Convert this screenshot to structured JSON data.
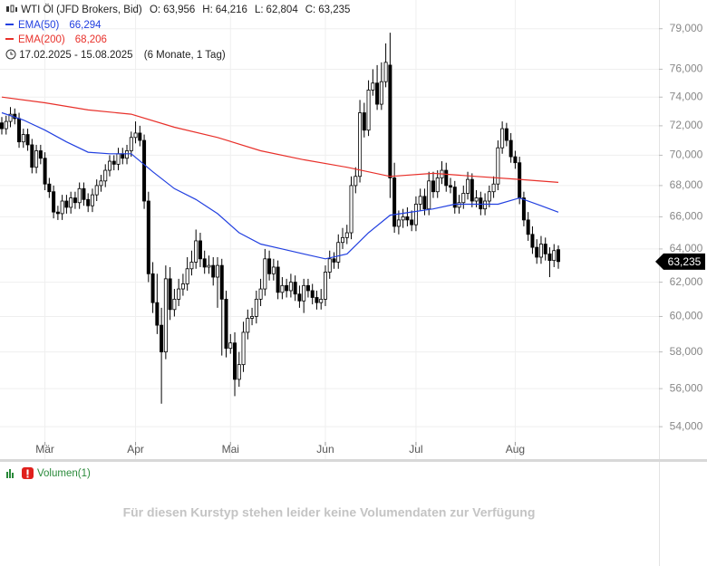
{
  "chart_data": {
    "type": "candlestick",
    "title": "WTI Öl (JFD Brokers, Bid)",
    "readout": [
      {
        "name": "O:",
        "text": "63,956"
      },
      {
        "name": "H:",
        "text": "64,216"
      },
      {
        "name": "L:",
        "text": "62,804"
      },
      {
        "name": "C:",
        "text": "63,235"
      }
    ],
    "period": {
      "range": "17.02.2025 - 15.08.2025",
      "span": "(6 Monate, 1 Tag)"
    },
    "log_scale": true,
    "grid": true,
    "ylim": [
      52.35,
      81.2
    ],
    "yticks": [
      {
        "value": 54,
        "label": "54,000"
      },
      {
        "value": 56,
        "label": "56,000"
      },
      {
        "value": 58,
        "label": "58,000"
      },
      {
        "value": 60,
        "label": "60,000"
      },
      {
        "value": 62,
        "label": "62,000"
      },
      {
        "value": 64,
        "label": "64,000"
      },
      {
        "value": 66,
        "label": "66,000"
      },
      {
        "value": 68,
        "label": "68,000"
      },
      {
        "value": 70,
        "label": "70,000"
      },
      {
        "value": 72,
        "label": "72,000"
      },
      {
        "value": 74,
        "label": "74,000"
      },
      {
        "value": 76,
        "label": "76,000"
      },
      {
        "value": 79,
        "label": "79,000"
      }
    ],
    "categories": [
      null,
      null,
      null,
      null,
      null,
      null,
      null,
      null,
      null,
      null,
      "Mär",
      null,
      null,
      null,
      null,
      null,
      null,
      null,
      null,
      null,
      null,
      null,
      null,
      null,
      null,
      null,
      null,
      null,
      null,
      null,
      null,
      "Apr",
      null,
      null,
      null,
      null,
      null,
      null,
      null,
      null,
      null,
      null,
      null,
      null,
      null,
      null,
      null,
      null,
      null,
      null,
      null,
      null,
      null,
      "Mai",
      null,
      null,
      null,
      null,
      null,
      null,
      null,
      null,
      null,
      null,
      null,
      null,
      null,
      null,
      null,
      null,
      null,
      null,
      null,
      null,
      null,
      "Jun",
      null,
      null,
      null,
      null,
      null,
      null,
      null,
      null,
      null,
      null,
      null,
      null,
      null,
      null,
      null,
      null,
      null,
      null,
      null,
      null,
      "Jul",
      null,
      null,
      null,
      null,
      null,
      null,
      null,
      null,
      null,
      null,
      null,
      null,
      null,
      null,
      null,
      null,
      null,
      null,
      null,
      null,
      null,
      null,
      "Aug",
      null,
      null,
      null,
      null,
      null,
      null,
      null,
      null,
      null,
      null
    ],
    "ohlc": {
      "up_color": "#ffffff",
      "down_color": "#000000",
      "open": [
        72.2,
        71.8,
        72.3,
        72.8,
        72.5,
        70.9,
        71.4,
        70.7,
        69.2,
        70.3,
        69.8,
        68.1,
        67.6,
        66.3,
        66.2,
        67.0,
        66.6,
        67.2,
        66.9,
        67.8,
        67.1,
        66.7,
        67.4,
        68.0,
        68.3,
        69.0,
        69.6,
        69.4,
        70.1,
        69.8,
        70.3,
        71.2,
        71.5,
        71.0,
        67.0,
        62.5,
        60.8,
        59.5,
        58.0,
        62.2,
        60.4,
        61.0,
        61.6,
        61.9,
        62.8,
        63.2,
        64.5,
        63.4,
        62.9,
        63.0,
        62.3,
        63.0,
        61.0,
        58.2,
        58.5,
        56.5,
        57.3,
        59.1,
        59.9,
        60.0,
        61.0,
        61.6,
        63.4,
        62.5,
        62.9,
        61.4,
        61.8,
        61.5,
        62.0,
        61.3,
        60.9,
        61.8,
        61.5,
        61.1,
        60.8,
        61.0,
        62.6,
        63.4,
        63.2,
        64.4,
        64.7,
        65.0,
        68.0,
        68.6,
        72.9,
        71.7,
        74.5,
        75.0,
        73.5,
        75.1,
        76.3,
        68.5,
        65.4,
        65.8,
        66.0,
        65.8,
        65.5,
        66.8,
        67.3,
        66.5,
        68.3,
        67.6,
        68.5,
        69.0,
        68.0,
        67.9,
        66.6,
        66.9,
        67.5,
        68.4,
        67.0,
        67.2,
        66.5,
        67.0,
        67.6,
        68.1,
        70.5,
        71.8,
        71.0,
        69.9,
        69.5,
        67.2,
        65.8,
        64.9,
        64.1,
        63.5,
        64.3,
        63.7,
        63.3,
        63.956
      ],
      "high": [
        72.6,
        72.7,
        73.3,
        73.2,
        72.9,
        71.8,
        71.8,
        71.1,
        70.7,
        70.7,
        70.2,
        68.5,
        68.0,
        66.7,
        67.4,
        67.4,
        67.6,
        67.6,
        68.2,
        68.2,
        67.5,
        67.8,
        68.4,
        68.7,
        69.4,
        70.0,
        70.0,
        70.5,
        70.5,
        70.7,
        71.6,
        72.3,
        72.0,
        71.4,
        67.6,
        63.2,
        62.5,
        60.5,
        63.0,
        62.9,
        61.6,
        62.2,
        62.5,
        63.5,
        63.9,
        65.2,
        65.0,
        63.9,
        63.6,
        63.5,
        63.5,
        63.4,
        61.5,
        59.0,
        59.1,
        58.0,
        59.7,
        60.4,
        60.5,
        61.5,
        62.2,
        64.0,
        63.9,
        63.4,
        63.3,
        62.3,
        62.2,
        62.5,
        62.4,
        61.8,
        62.2,
        62.2,
        61.9,
        61.5,
        61.6,
        63.0,
        63.9,
        63.8,
        64.9,
        65.3,
        65.5,
        68.6,
        69.2,
        73.8,
        73.6,
        75.2,
        76.0,
        76.3,
        76.5,
        77.9,
        78.7,
        69.5,
        66.4,
        66.5,
        66.6,
        66.4,
        67.3,
        67.8,
        67.8,
        68.9,
        68.9,
        69.0,
        69.6,
        69.5,
        68.5,
        68.3,
        67.4,
        68.0,
        68.9,
        68.8,
        67.7,
        67.6,
        67.5,
        68.0,
        68.6,
        71.0,
        72.3,
        72.2,
        71.5,
        70.3,
        69.9,
        67.6,
        66.3,
        65.4,
        64.6,
        64.8,
        64.7,
        64.1,
        64.3,
        64.216
      ],
      "low": [
        71.4,
        71.4,
        71.9,
        72.1,
        70.5,
        70.5,
        70.3,
        68.8,
        68.8,
        69.4,
        67.7,
        67.2,
        65.9,
        65.8,
        65.8,
        66.2,
        66.2,
        66.5,
        66.5,
        66.7,
        66.3,
        66.3,
        67.0,
        67.6,
        67.9,
        68.6,
        69.0,
        69.0,
        69.4,
        69.4,
        69.9,
        70.8,
        70.6,
        66.5,
        62.0,
        60.2,
        59.0,
        55.2,
        57.6,
        59.8,
        60.0,
        60.6,
        61.2,
        61.5,
        62.4,
        62.8,
        62.9,
        62.5,
        62.5,
        61.8,
        60.5,
        57.8,
        57.7,
        57.9,
        55.6,
        56.1,
        56.9,
        58.7,
        59.5,
        59.6,
        60.6,
        61.2,
        62.1,
        62.1,
        61.0,
        61.0,
        61.1,
        61.1,
        60.9,
        60.5,
        60.2,
        61.1,
        60.7,
        60.4,
        60.4,
        60.6,
        62.2,
        62.8,
        62.8,
        64.0,
        64.3,
        64.6,
        67.5,
        68.2,
        71.2,
        71.3,
        74.1,
        73.1,
        73.1,
        74.7,
        67.2,
        65.0,
        64.9,
        65.3,
        65.4,
        65.1,
        65.1,
        66.4,
        66.1,
        66.1,
        67.2,
        67.2,
        68.1,
        67.6,
        67.5,
        66.2,
        66.2,
        66.5,
        67.1,
        66.6,
        66.6,
        66.1,
        66.1,
        66.6,
        67.2,
        67.7,
        70.1,
        70.6,
        69.5,
        69.1,
        66.8,
        65.4,
        64.5,
        63.7,
        63.1,
        63.1,
        63.3,
        62.3,
        62.9,
        62.804
      ],
      "close": [
        71.8,
        72.3,
        72.8,
        72.5,
        70.9,
        71.4,
        70.7,
        69.2,
        70.3,
        69.8,
        68.1,
        67.6,
        66.3,
        66.2,
        67.0,
        66.6,
        67.2,
        66.9,
        67.8,
        67.1,
        66.7,
        67.4,
        68.0,
        68.3,
        69.0,
        69.6,
        69.4,
        70.1,
        69.8,
        70.3,
        71.2,
        71.5,
        71.0,
        67.0,
        62.5,
        60.8,
        59.5,
        58.0,
        62.2,
        60.4,
        61.0,
        61.6,
        61.9,
        62.8,
        63.2,
        64.5,
        63.4,
        62.9,
        63.0,
        62.3,
        63.0,
        61.0,
        58.2,
        58.5,
        56.5,
        57.3,
        59.1,
        59.9,
        60.0,
        61.0,
        61.6,
        63.4,
        62.5,
        62.9,
        61.4,
        61.8,
        61.5,
        62.0,
        61.3,
        60.9,
        61.8,
        61.5,
        61.1,
        60.8,
        61.0,
        62.6,
        63.4,
        63.2,
        64.4,
        64.7,
        65.0,
        68.0,
        68.6,
        72.9,
        71.7,
        74.5,
        75.0,
        73.5,
        75.1,
        76.5,
        68.5,
        65.4,
        65.8,
        66.0,
        65.8,
        65.5,
        66.8,
        67.3,
        66.5,
        68.3,
        67.6,
        68.5,
        69.0,
        68.0,
        67.9,
        66.6,
        66.9,
        67.5,
        68.4,
        67.0,
        67.2,
        66.5,
        67.0,
        67.6,
        68.1,
        70.5,
        71.8,
        71.0,
        69.9,
        69.5,
        67.2,
        65.8,
        64.9,
        64.1,
        63.5,
        64.3,
        63.7,
        63.3,
        63.9,
        63.235
      ]
    },
    "series": [
      {
        "name": "EMA(50)",
        "color": "#2240e0",
        "value_label": "66,294",
        "x": [
          0,
          5,
          10,
          15,
          20,
          25,
          30,
          35,
          40,
          45,
          50,
          55,
          60,
          65,
          70,
          75,
          80,
          85,
          90,
          95,
          100,
          105,
          110,
          115,
          120,
          125,
          129
        ],
        "values": [
          72.9,
          72.4,
          71.7,
          70.9,
          70.2,
          70.1,
          70.1,
          68.9,
          67.8,
          67.1,
          66.2,
          65.0,
          64.3,
          64.0,
          63.7,
          63.4,
          63.7,
          65.0,
          66.1,
          66.3,
          66.5,
          66.8,
          66.8,
          66.8,
          67.2,
          66.7,
          66.294
        ]
      },
      {
        "name": "EMA(200)",
        "color": "#e8302a",
        "value_label": "68,206",
        "x": [
          0,
          10,
          20,
          30,
          40,
          50,
          60,
          70,
          80,
          90,
          100,
          110,
          120,
          129
        ],
        "values": [
          74.0,
          73.6,
          73.1,
          72.8,
          71.9,
          71.2,
          70.3,
          69.7,
          69.2,
          68.6,
          68.8,
          68.6,
          68.4,
          68.206
        ]
      }
    ],
    "volume_panel": {
      "title": "Volumen(1)",
      "message": "Für diesen Kurstyp stehen leider keine Volumendaten zur Verfügung"
    }
  }
}
